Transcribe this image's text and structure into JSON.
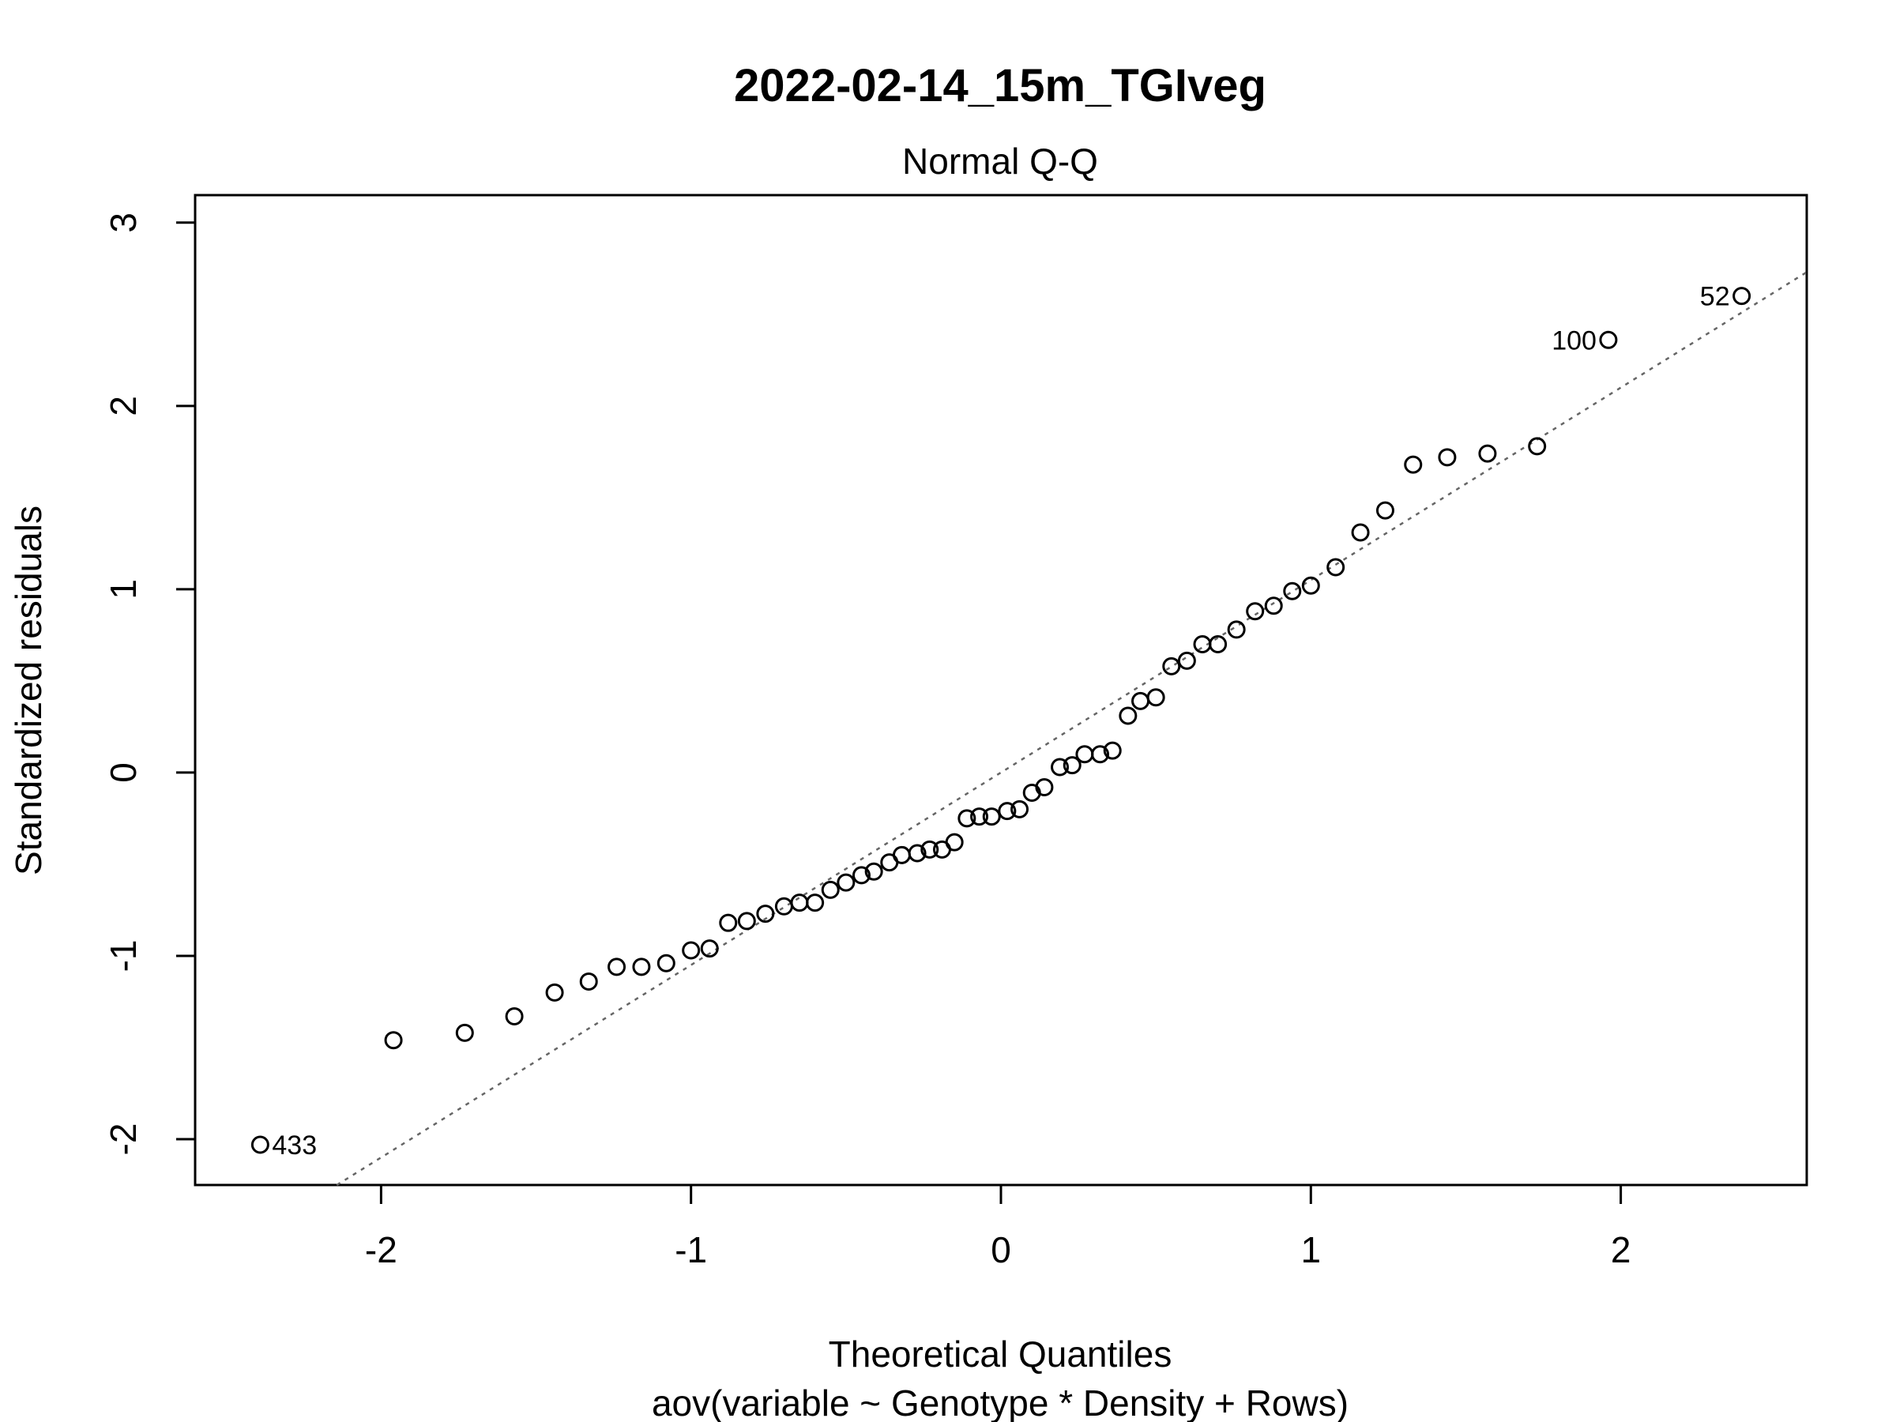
{
  "chart_data": {
    "type": "scatter",
    "title": "2022-02-14_15m_TGIveg",
    "subtitle": "Normal Q-Q",
    "xlabel": "Theoretical Quantiles",
    "xlabel2": "aov(variable ~ Genotype * Density + Rows)",
    "ylabel": "Standardized residuals",
    "xlim": [
      -2.6,
      2.6
    ],
    "ylim": [
      -2.25,
      3.15
    ],
    "x_ticks": [
      "-2",
      "-1",
      "0",
      "1",
      "2"
    ],
    "x_tick_values": [
      -2,
      -1,
      0,
      1,
      2
    ],
    "y_ticks": [
      "-2",
      "-1",
      "0",
      "1",
      "2",
      "3"
    ],
    "y_tick_values": [
      -2,
      -1,
      0,
      1,
      2,
      3
    ],
    "grid": false,
    "reference_line": {
      "slope": 1.05,
      "intercept": 0.0,
      "style": "dotted",
      "color": "#666666"
    },
    "points": {
      "x": [
        -2.39,
        -1.96,
        -1.73,
        -1.57,
        -1.44,
        -1.33,
        -1.24,
        -1.16,
        -1.08,
        -1.0,
        -0.94,
        -0.88,
        -0.82,
        -0.76,
        -0.7,
        -0.65,
        -0.6,
        -0.55,
        -0.5,
        -0.45,
        -0.41,
        -0.36,
        -0.32,
        -0.27,
        -0.23,
        -0.19,
        -0.15,
        -0.11,
        -0.07,
        -0.03,
        0.02,
        0.06,
        0.1,
        0.14,
        0.19,
        0.23,
        0.27,
        0.32,
        0.36,
        0.41,
        0.45,
        0.5,
        0.55,
        0.6,
        0.65,
        0.7,
        0.76,
        0.82,
        0.88,
        0.94,
        1.0,
        1.08,
        1.16,
        1.24,
        1.33,
        1.44,
        1.57,
        1.73,
        1.96,
        2.39
      ],
      "y": [
        -2.03,
        -1.46,
        -1.42,
        -1.33,
        -1.2,
        -1.14,
        -1.06,
        -1.06,
        -1.04,
        -0.97,
        -0.96,
        -0.82,
        -0.81,
        -0.77,
        -0.73,
        -0.71,
        -0.71,
        -0.64,
        -0.6,
        -0.56,
        -0.54,
        -0.49,
        -0.45,
        -0.44,
        -0.42,
        -0.42,
        -0.38,
        -0.25,
        -0.24,
        -0.24,
        -0.21,
        -0.2,
        -0.11,
        -0.08,
        0.03,
        0.04,
        0.1,
        0.1,
        0.12,
        0.31,
        0.39,
        0.41,
        0.58,
        0.61,
        0.7,
        0.7,
        0.78,
        0.88,
        0.91,
        0.99,
        1.02,
        1.12,
        1.31,
        1.43,
        1.68,
        1.72,
        1.74,
        1.78,
        2.36,
        2.6
      ],
      "color": "#000000"
    },
    "labeled_points": [
      {
        "label": "433",
        "x": -2.39,
        "y": -2.03,
        "side": "right"
      },
      {
        "label": "100",
        "x": 1.96,
        "y": 2.36,
        "side": "left"
      },
      {
        "label": "52",
        "x": 2.39,
        "y": 2.6,
        "side": "left"
      }
    ]
  }
}
